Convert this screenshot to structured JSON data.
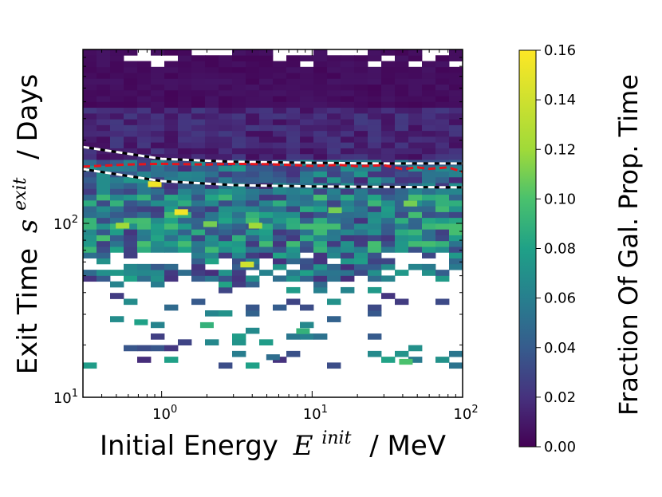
{
  "chart_data": {
    "type": "heatmap",
    "x_axis": {
      "label_text": "Initial Energy",
      "label_symbol": "E",
      "label_superscript": "init",
      "label_unit": "/ MeV",
      "scale": "log",
      "range": [
        0.3,
        100
      ],
      "major_ticks": [
        {
          "base": "10",
          "exp": "0"
        },
        {
          "base": "10",
          "exp": "1"
        },
        {
          "base": "10",
          "exp": "2"
        }
      ]
    },
    "y_axis": {
      "label_text": "Exit Time",
      "label_symbol": "s",
      "label_superscript": "exit",
      "label_unit": "/ Days",
      "scale": "log",
      "range": [
        10,
        1000
      ],
      "major_ticks": [
        {
          "base": "10",
          "exp": "1"
        },
        {
          "base": "10",
          "exp": "2"
        }
      ]
    },
    "colorbar": {
      "label": "Fraction Of Gal. Prop. Time",
      "range": [
        0.0,
        0.16
      ],
      "ticks": [
        "0.00",
        "0.02",
        "0.04",
        "0.06",
        "0.08",
        "0.10",
        "0.12",
        "0.14",
        "0.16"
      ],
      "colormap": "viridis"
    },
    "grid": false,
    "legend": "none",
    "lines": [
      {
        "style": "white/black dashed",
        "x": [
          0.3,
          1,
          3,
          10,
          30,
          100
        ],
        "y": [
          275,
          235,
          226,
          223,
          221,
          221
        ]
      },
      {
        "style": "white/black dashed",
        "x": [
          0.3,
          1,
          3,
          10,
          30,
          100
        ],
        "y": [
          205,
          175,
          166,
          163,
          162,
          161
        ]
      },
      {
        "style": "red dashed",
        "x": [
          0.3,
          0.6,
          1,
          2,
          3,
          5,
          8,
          10,
          15,
          20,
          30,
          40,
          50,
          60,
          80,
          100
        ],
        "y": [
          212,
          218,
          220,
          218,
          220,
          219,
          216,
          214,
          217,
          213,
          216,
          205,
          210,
          206,
          210,
          198
        ]
      }
    ],
    "bin_summary": [
      {
        "y_range": [
          480,
          1000
        ],
        "typical_fraction": 0.005
      },
      {
        "y_range": [
          230,
          480
        ],
        "typical_fraction": 0.015
      },
      {
        "y_range": [
          150,
          230
        ],
        "typical_fraction": 0.045
      },
      {
        "y_range": [
          70,
          150
        ],
        "typical_fraction": 0.06
      },
      {
        "y_range": [
          45,
          70
        ],
        "typical_fraction": 0.05
      },
      {
        "y_range": [
          15,
          45
        ],
        "typical_fraction": 0.05,
        "sparse": true
      }
    ],
    "notable_bins": [
      {
        "x": 0.9,
        "y": 168,
        "fraction": 0.155
      },
      {
        "x": 1.35,
        "y": 116,
        "fraction": 0.155
      },
      {
        "x": 3.7,
        "y": 58,
        "fraction": 0.14
      },
      {
        "x": 0.55,
        "y": 97,
        "fraction": 0.12
      },
      {
        "x": 4.2,
        "y": 97,
        "fraction": 0.12
      },
      {
        "x": 14.2,
        "y": 119,
        "fraction": 0.11
      },
      {
        "x": 2.1,
        "y": 99,
        "fraction": 0.11
      },
      {
        "x": 45,
        "y": 130,
        "fraction": 0.11
      },
      {
        "x": 42,
        "y": 16,
        "fraction": 0.1
      },
      {
        "x": 0.73,
        "y": 27,
        "fraction": 0.08
      },
      {
        "x": 2.0,
        "y": 26,
        "fraction": 0.09
      },
      {
        "x": 8.7,
        "y": 24,
        "fraction": 0.09
      },
      {
        "x": 5.5,
        "y": 17,
        "fraction": 0.05
      }
    ]
  }
}
